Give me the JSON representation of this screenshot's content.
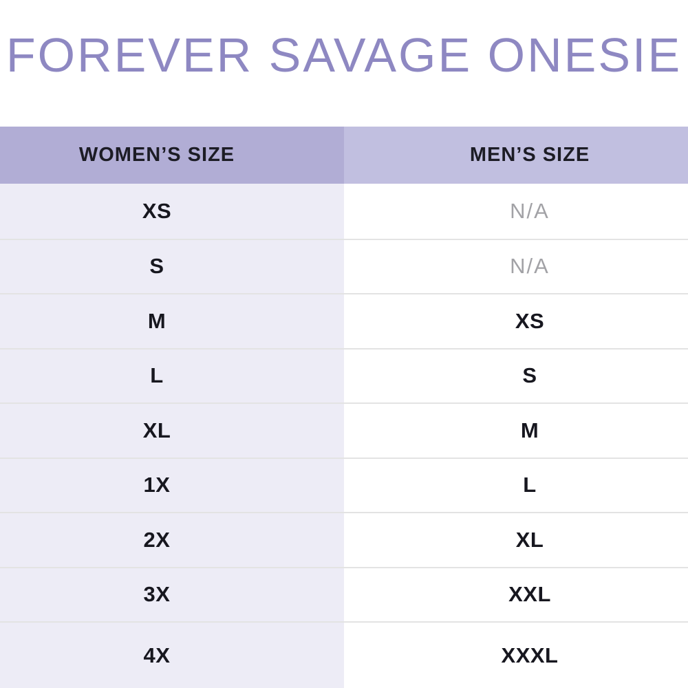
{
  "title": "FOREVER SAVAGE ONESIE",
  "table": {
    "columns": [
      {
        "label": "WOMEN’S SIZE"
      },
      {
        "label": "MEN’S SIZE"
      }
    ],
    "rows": [
      {
        "women": "XS",
        "men": "N/A",
        "men_available": false
      },
      {
        "women": "S",
        "men": "N/A",
        "men_available": false
      },
      {
        "women": "M",
        "men": "XS",
        "men_available": true
      },
      {
        "women": "L",
        "men": "S",
        "men_available": true
      },
      {
        "women": "XL",
        "men": "M",
        "men_available": true
      },
      {
        "women": "1X",
        "men": "L",
        "men_available": true
      },
      {
        "women": "2X",
        "men": "XL",
        "men_available": true
      },
      {
        "women": "3X",
        "men": "XXL",
        "men_available": true
      },
      {
        "women": "4X",
        "men": "XXXL",
        "men_available": true
      }
    ]
  },
  "colors": {
    "title_text": "#8e88c2",
    "header_left_bg": "#b1add5",
    "header_right_bg": "#c1bfe0",
    "body_left_bg": "#edecf6",
    "body_right_bg": "#ffffff",
    "value_text": "#17171f",
    "na_text": "#a2a2a6",
    "row_separator": "#e3e3e3"
  }
}
